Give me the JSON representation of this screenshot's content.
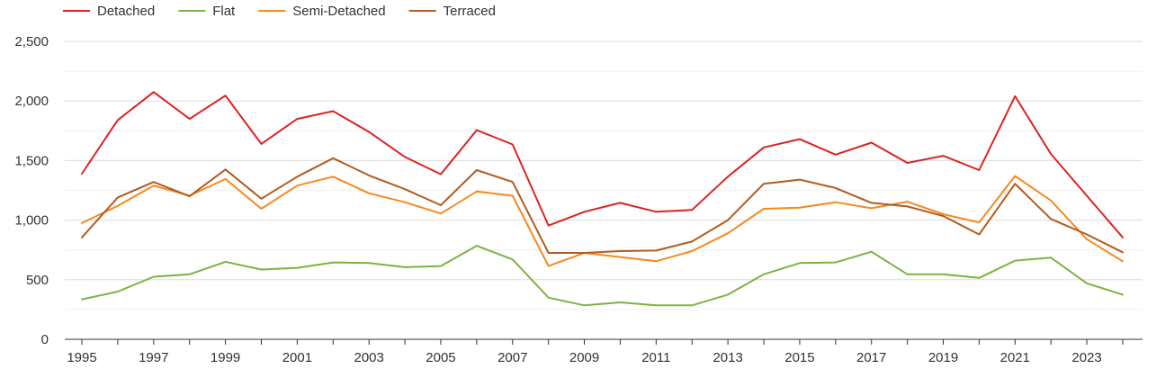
{
  "chart_data": {
    "type": "line",
    "x": [
      1995,
      1996,
      1997,
      1998,
      1999,
      2000,
      2001,
      2002,
      2003,
      2004,
      2005,
      2006,
      2007,
      2008,
      2009,
      2010,
      2011,
      2012,
      2013,
      2014,
      2015,
      2016,
      2017,
      2018,
      2019,
      2020,
      2021,
      2022,
      2023,
      2024
    ],
    "x_tick_labels": [
      "1995",
      "1997",
      "1999",
      "2001",
      "2003",
      "2005",
      "2007",
      "2009",
      "2011",
      "2013",
      "2015",
      "2017",
      "2019",
      "2021",
      "2023"
    ],
    "y_ticks": [
      0,
      500,
      1000,
      1500,
      2000,
      2500
    ],
    "y_tick_labels": [
      "0",
      "500",
      "1,000",
      "1,500",
      "2,000",
      "2,500"
    ],
    "ylim": [
      0,
      2500
    ],
    "grid": true,
    "legend_position": "top-left",
    "series": [
      {
        "name": "Detached",
        "color": "#dd2222",
        "values": [
          1390,
          1840,
          2075,
          1850,
          2045,
          1640,
          1850,
          1915,
          1740,
          1530,
          1385,
          1755,
          1635,
          955,
          1070,
          1145,
          1070,
          1085,
          1365,
          1610,
          1680,
          1550,
          1650,
          1480,
          1540,
          1420,
          2040,
          1555,
          1205,
          855
        ]
      },
      {
        "name": "Flat",
        "color": "#7cb342",
        "values": [
          335,
          400,
          525,
          545,
          650,
          585,
          600,
          645,
          640,
          605,
          615,
          785,
          670,
          350,
          285,
          310,
          285,
          285,
          375,
          545,
          640,
          645,
          735,
          545,
          545,
          515,
          660,
          685,
          470,
          375
        ]
      },
      {
        "name": "Semi-Detached",
        "color": "#f5891f",
        "values": [
          975,
          1120,
          1290,
          1205,
          1345,
          1095,
          1290,
          1365,
          1225,
          1150,
          1055,
          1240,
          1205,
          615,
          725,
          690,
          655,
          740,
          890,
          1095,
          1105,
          1150,
          1100,
          1155,
          1050,
          980,
          1370,
          1165,
          840,
          655
        ]
      },
      {
        "name": "Terraced",
        "color": "#b35b1e",
        "values": [
          855,
          1190,
          1320,
          1200,
          1425,
          1180,
          1365,
          1520,
          1375,
          1260,
          1125,
          1420,
          1320,
          725,
          725,
          740,
          745,
          820,
          1000,
          1305,
          1340,
          1270,
          1145,
          1115,
          1035,
          880,
          1305,
          1010,
          880,
          730
        ]
      }
    ]
  }
}
